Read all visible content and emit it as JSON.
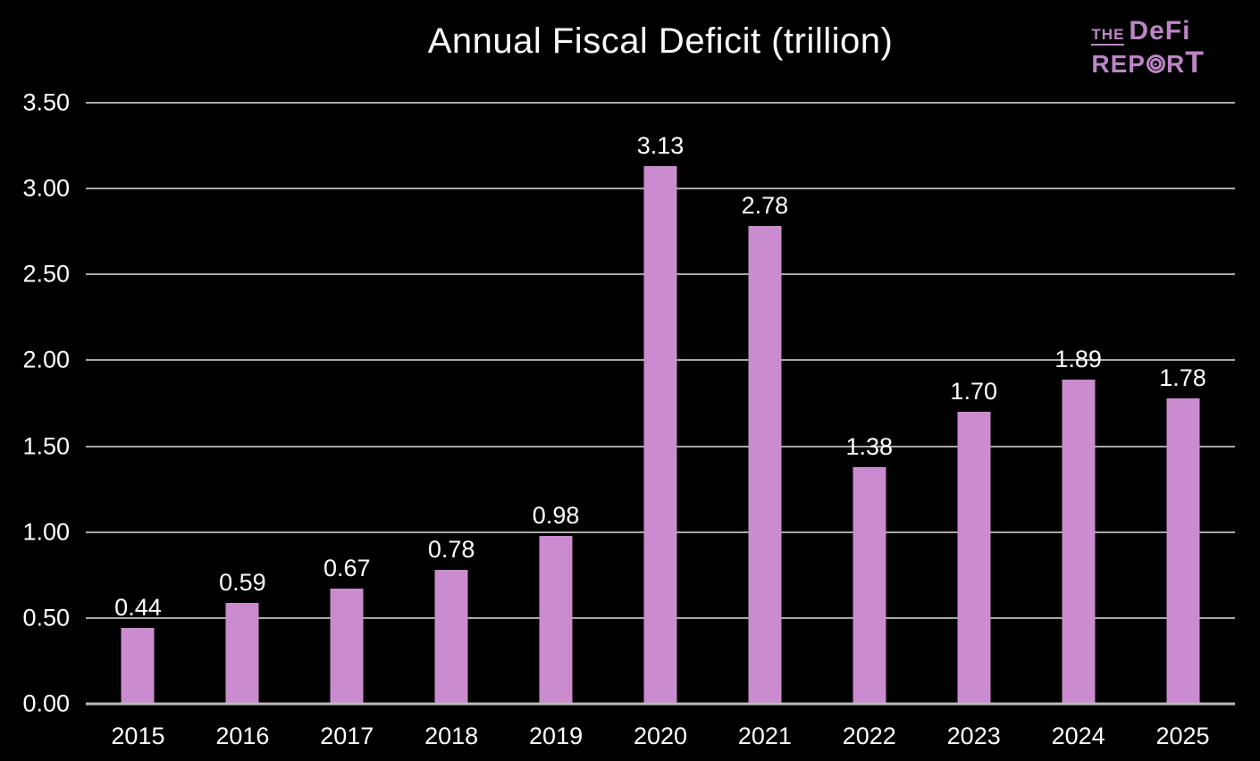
{
  "logo": {
    "the": "THE",
    "brand": "DeFi",
    "report_pre": "REP",
    "report_r": "R",
    "report_t": "T",
    "color": "#bd85c6"
  },
  "chart_data": {
    "type": "bar",
    "title": "Annual Fiscal Deficit (trillion)",
    "categories": [
      "2015",
      "2016",
      "2017",
      "2018",
      "2019",
      "2020",
      "2021",
      "2022",
      "2023",
      "2024",
      "2025"
    ],
    "values": [
      0.44,
      0.59,
      0.67,
      0.78,
      0.98,
      3.13,
      2.78,
      1.38,
      1.7,
      1.89,
      1.78
    ],
    "data_labels": [
      "0.44",
      "0.59",
      "0.67",
      "0.78",
      "0.98",
      "3.13",
      "2.78",
      "1.38",
      "1.70",
      "1.89",
      "1.78"
    ],
    "xlabel": "",
    "ylabel": "",
    "ylim": [
      0,
      3.5
    ],
    "yticks": [
      "0.00",
      "0.50",
      "1.00",
      "1.50",
      "2.00",
      "2.50",
      "3.00",
      "3.50"
    ],
    "grid": true,
    "legend": "none",
    "colors": {
      "bar": "#ca8cce",
      "background": "#000000",
      "text": "#ffffff",
      "gridline": "#a8a8a8",
      "baseline": "#bdbdbd"
    }
  }
}
